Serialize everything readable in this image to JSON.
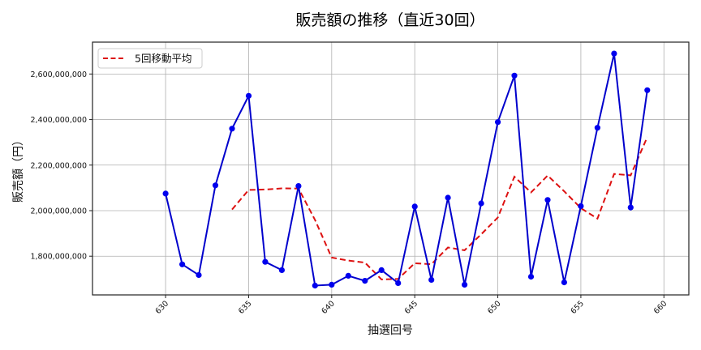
{
  "chart_data": {
    "type": "line",
    "title": "販売額の推移（直近30回）",
    "xlabel": "抽選回号",
    "ylabel": "販売額（円）",
    "x": [
      630,
      631,
      632,
      633,
      634,
      635,
      636,
      637,
      638,
      639,
      640,
      641,
      642,
      643,
      644,
      645,
      646,
      647,
      648,
      649,
      650,
      651,
      652,
      653,
      654,
      655,
      656,
      657,
      658,
      659
    ],
    "series": [
      {
        "name": "販売額",
        "style": "solid line with circle markers",
        "color": "#0000cc",
        "in_legend": false,
        "values": [
          2075000000,
          1764000000,
          1717000000,
          2111000000,
          2360000000,
          2504000000,
          1775000000,
          1739000000,
          2108000000,
          1671000000,
          1675000000,
          1714000000,
          1692000000,
          1739000000,
          1682000000,
          2018000000,
          1696000000,
          2057000000,
          1675000000,
          2032000000,
          2389000000,
          2593000000,
          1710000000,
          2047000000,
          1685000000,
          2020000000,
          2364000000,
          2690000000,
          2014000000,
          2529000000
        ]
      },
      {
        "name": "5回移動平均",
        "style": "dashed line",
        "color": "#dd1111",
        "in_legend": true,
        "values": [
          null,
          null,
          null,
          null,
          2005000000,
          2091000000,
          2093000000,
          2098000000,
          2097000000,
          1959000000,
          1794000000,
          1781000000,
          1772000000,
          1698000000,
          1700000000,
          1769000000,
          1765000000,
          1838000000,
          1826000000,
          1896000000,
          1970000000,
          2149000000,
          2080000000,
          2154000000,
          2085000000,
          2011000000,
          1965000000,
          2161000000,
          2155000000,
          2323000000
        ]
      }
    ],
    "xticks": [
      630,
      635,
      640,
      645,
      650,
      655,
      660
    ],
    "xtick_labels": [
      "630",
      "635",
      "640",
      "645",
      "650",
      "655",
      "660"
    ],
    "yticks": [
      1800000000,
      2000000000,
      2200000000,
      2400000000,
      2600000000
    ],
    "ytick_labels": [
      "1,800,000,000",
      "2,000,000,000",
      "2,200,000,000",
      "2,400,000,000",
      "2,600,000,000"
    ],
    "xlim": [
      625.6,
      661.5
    ],
    "ylim": [
      1630000000,
      2740000000
    ],
    "grid": true,
    "legend_position": "upper left",
    "legend_entries": [
      "5回移動平均"
    ]
  }
}
